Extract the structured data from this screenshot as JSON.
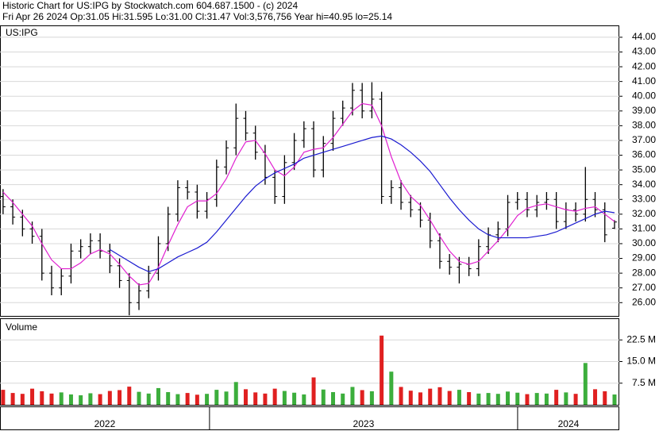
{
  "header": {
    "title": "Historic Chart for US:IPG by Stockwatch.com 604.687.1500 - (c) 2024",
    "quote": "Fri Apr 26 2024   Op:31.05   Hi:31.595   Lo:31.00   Cl:31.47   Vol:3,576,756   Year hi=40.95   lo=25.14"
  },
  "chart_data": {
    "type": "ohlc",
    "label": "US:IPG",
    "color": "#000000",
    "grid": true,
    "x": [
      2022.33,
      2022.3615,
      2022.393,
      2022.4245,
      2022.456,
      2022.4875,
      2022.519,
      2022.5505,
      2022.582,
      2022.6135,
      2022.645,
      2022.6765,
      2022.708,
      2022.7395,
      2022.771,
      2022.8025,
      2022.834,
      2022.8655,
      2022.897,
      2022.9285,
      2022.96,
      2022.9915,
      2023.023,
      2023.0545,
      2023.086,
      2023.1175,
      2023.149,
      2023.1805,
      2023.212,
      2023.2435,
      2023.275,
      2023.3065,
      2023.338,
      2023.3695,
      2023.401,
      2023.4325,
      2023.464,
      2023.4955,
      2023.527,
      2023.5585,
      2023.59,
      2023.6215,
      2023.653,
      2023.6845,
      2023.716,
      2023.7475,
      2023.779,
      2023.8105,
      2023.842,
      2023.8735,
      2023.905,
      2023.9365,
      2023.968,
      2023.9995,
      2024.031,
      2024.0625,
      2024.094,
      2024.1255,
      2024.157,
      2024.1885,
      2024.22,
      2024.2515,
      2024.283,
      2024.3145
    ],
    "open": [
      33.2,
      32.5,
      31.8,
      31.0,
      30.5,
      28.0,
      27.0,
      27.8,
      29.5,
      29.8,
      30.2,
      29.5,
      28.5,
      27.5,
      26.0,
      26.8,
      28.0,
      30.0,
      32.0,
      33.8,
      33.5,
      32.2,
      33.0,
      35.2,
      36.5,
      38.5,
      37.5,
      36.2,
      34.5,
      33.2,
      35.5,
      37.0,
      37.8,
      35.0,
      36.8,
      38.5,
      39.2,
      40.4,
      39.0,
      39.8,
      33.2,
      33.8,
      32.8,
      32.3,
      31.6,
      30.2,
      28.8,
      28.4,
      28.6,
      28.3,
      29.8,
      30.6,
      31.0,
      32.8,
      33.0,
      32.3,
      32.8,
      33.0,
      31.5,
      32.3,
      32.0,
      33.0,
      32.3,
      31.05
    ],
    "high": [
      33.7,
      33.0,
      32.3,
      31.5,
      31.0,
      28.5,
      28.3,
      30.0,
      30.3,
      30.7,
      30.7,
      30.0,
      29.0,
      28.0,
      27.3,
      28.5,
      30.5,
      32.5,
      34.3,
      34.3,
      34.0,
      33.5,
      35.7,
      37.0,
      39.5,
      39.0,
      38.0,
      36.7,
      35.0,
      36.0,
      37.5,
      38.3,
      38.3,
      37.3,
      39.0,
      39.7,
      40.9,
      40.9,
      40.95,
      40.3,
      34.3,
      34.3,
      33.3,
      32.8,
      32.1,
      30.7,
      29.3,
      29.1,
      29.1,
      30.3,
      31.1,
      31.5,
      33.3,
      33.5,
      33.5,
      33.3,
      33.5,
      33.5,
      32.8,
      32.8,
      35.2,
      33.5,
      32.8,
      31.595
    ],
    "low": [
      32.0,
      31.3,
      30.5,
      30.0,
      27.5,
      26.5,
      26.5,
      27.3,
      29.0,
      29.3,
      29.0,
      28.0,
      27.0,
      25.14,
      25.5,
      26.3,
      27.5,
      29.5,
      31.5,
      33.0,
      31.7,
      31.7,
      32.5,
      34.7,
      36.0,
      37.0,
      35.7,
      34.0,
      32.7,
      32.7,
      35.0,
      36.5,
      34.5,
      34.5,
      36.3,
      38.0,
      38.7,
      38.5,
      38.5,
      32.7,
      32.7,
      32.3,
      31.8,
      31.1,
      29.7,
      28.3,
      27.9,
      27.3,
      27.8,
      27.8,
      29.3,
      30.1,
      30.5,
      32.3,
      31.8,
      31.8,
      32.3,
      31.0,
      31.0,
      31.5,
      31.5,
      31.8,
      30.1,
      31.0
    ],
    "close": [
      32.5,
      31.8,
      31.0,
      30.5,
      28.0,
      27.0,
      27.8,
      29.5,
      29.8,
      30.2,
      29.5,
      28.5,
      27.5,
      26.0,
      26.8,
      28.0,
      30.0,
      32.0,
      33.8,
      33.5,
      32.2,
      33.0,
      35.2,
      36.5,
      38.5,
      37.5,
      36.2,
      34.5,
      33.2,
      35.5,
      37.0,
      37.8,
      35.0,
      36.8,
      38.5,
      39.2,
      40.4,
      39.0,
      39.8,
      33.2,
      33.8,
      32.8,
      32.3,
      31.6,
      30.2,
      28.8,
      28.4,
      28.6,
      28.3,
      29.8,
      30.6,
      31.0,
      32.8,
      33.0,
      32.3,
      32.8,
      33.0,
      31.5,
      32.3,
      32.0,
      33.0,
      32.3,
      30.6,
      31.47
    ],
    "moving_averages": [
      {
        "color": "#e020d0",
        "values": [
          33.5,
          32.8,
          32.0,
          31.2,
          30.0,
          28.9,
          28.3,
          28.3,
          28.7,
          29.3,
          29.6,
          29.3,
          28.6,
          27.8,
          27.2,
          27.3,
          28.4,
          29.9,
          31.3,
          32.5,
          32.9,
          32.9,
          33.4,
          34.4,
          35.8,
          36.9,
          37.0,
          36.1,
          35.0,
          34.6,
          35.2,
          36.2,
          36.4,
          36.5,
          37.2,
          38.1,
          39.0,
          39.5,
          39.4,
          38.0,
          35.9,
          34.2,
          33.2,
          32.6,
          31.6,
          30.5,
          29.5,
          28.8,
          28.6,
          28.8,
          29.5,
          30.2,
          31.0,
          31.9,
          32.4,
          32.6,
          32.7,
          32.5,
          32.3,
          32.2,
          32.4,
          32.5,
          32.0,
          31.5
        ]
      },
      {
        "color": "#1a1ad0",
        "values": [
          null,
          null,
          null,
          null,
          null,
          null,
          null,
          null,
          null,
          null,
          null,
          29.6,
          29.2,
          28.8,
          28.4,
          28.1,
          28.3,
          28.7,
          29.1,
          29.4,
          29.7,
          30.1,
          30.8,
          31.6,
          32.4,
          33.2,
          33.9,
          34.4,
          34.8,
          35.1,
          35.4,
          35.8,
          36.0,
          36.2,
          36.4,
          36.6,
          36.8,
          37.0,
          37.2,
          37.3,
          37.1,
          36.7,
          36.2,
          35.6,
          34.9,
          34.0,
          33.1,
          32.3,
          31.6,
          31.0,
          30.6,
          30.4,
          30.4,
          30.4,
          30.4,
          30.5,
          30.6,
          30.8,
          31.1,
          31.4,
          31.7,
          32.0,
          32.2,
          32.1
        ]
      }
    ],
    "xlim": [
      2022.32,
      2024.33
    ],
    "xticks": [
      2022,
      2023,
      2024
    ],
    "ylim": [
      25.1,
      44.75
    ],
    "yticks": [
      {
        "value": 26,
        "label": "26.00"
      },
      {
        "value": 27,
        "label": "27.00"
      },
      {
        "value": 28,
        "label": "28.00"
      },
      {
        "value": 29,
        "label": "29.00"
      },
      {
        "value": 30,
        "label": "30.00"
      },
      {
        "value": 31,
        "label": "31.00"
      },
      {
        "value": 32,
        "label": "32.00"
      },
      {
        "value": 33,
        "label": "33.00"
      },
      {
        "value": 34,
        "label": "34.00"
      },
      {
        "value": 35,
        "label": "35.00"
      },
      {
        "value": 36,
        "label": "36.00"
      },
      {
        "value": 37,
        "label": "37.00"
      },
      {
        "value": 38,
        "label": "38.00"
      },
      {
        "value": 39,
        "label": "39.00"
      },
      {
        "value": 40,
        "label": "40.00"
      },
      {
        "value": 41,
        "label": "41.00"
      },
      {
        "value": 42,
        "label": "42.00"
      },
      {
        "value": 43,
        "label": "43.00"
      },
      {
        "value": 44,
        "label": "44.00"
      }
    ],
    "volume": {
      "label": "Volume",
      "up_color": "#3cae3c",
      "down_color": "#e02020",
      "values": [
        5200000,
        4100000,
        3800000,
        5600000,
        4700000,
        3900000,
        4300000,
        3600000,
        3300000,
        4000000,
        3700000,
        4800000,
        5100000,
        6300000,
        4500000,
        3900000,
        5800000,
        4400000,
        3700000,
        4100000,
        3500000,
        3800000,
        5200000,
        4600000,
        7900000,
        5400000,
        4300000,
        3900000,
        5600000,
        4800000,
        4200000,
        3600000,
        9500000,
        5300000,
        4400000,
        3900000,
        6200000,
        5100000,
        4700000,
        24000000,
        11500000,
        6200000,
        4900000,
        4300000,
        5600000,
        6100000,
        4800000,
        5200000,
        4400000,
        3900000,
        4100000,
        3800000,
        4600000,
        4200000,
        3700000,
        4100000,
        3900000,
        5200000,
        4300000,
        3800000,
        14500000,
        5400000,
        4700000,
        3576756
      ],
      "ylim": [
        0,
        30000000
      ],
      "yticks": [
        {
          "value": 7500000,
          "label": "7.5 M"
        },
        {
          "value": 15000000,
          "label": "15.0 M"
        },
        {
          "value": 22500000,
          "label": "22.5 M"
        }
      ]
    }
  }
}
